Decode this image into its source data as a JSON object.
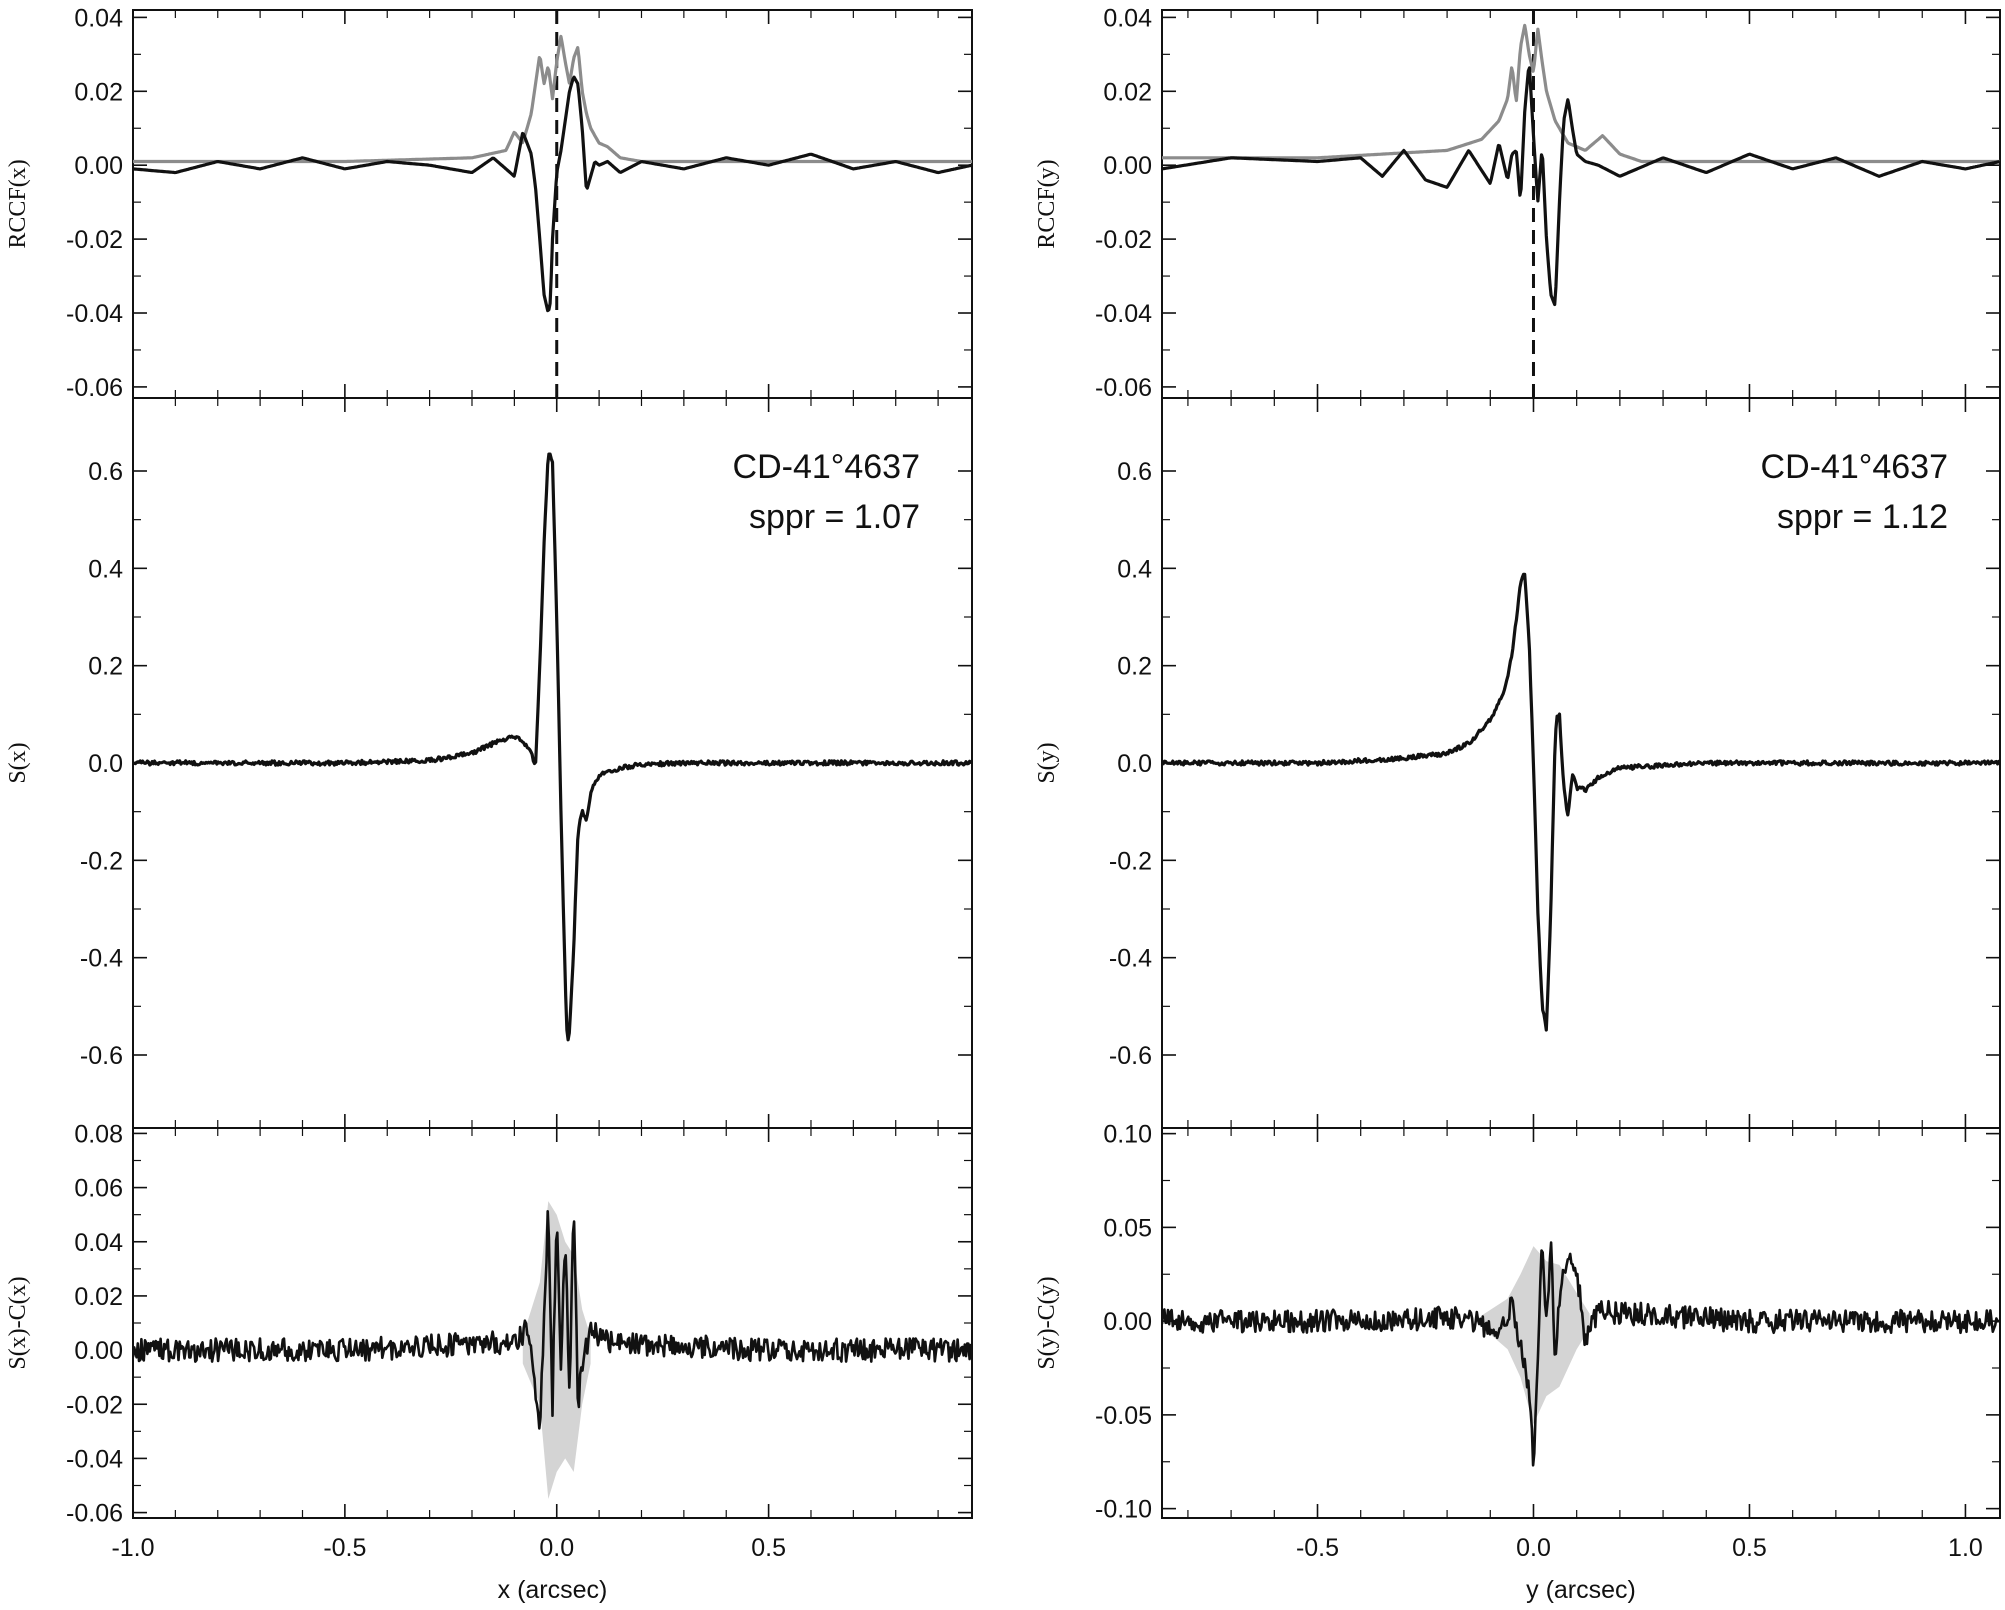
{
  "chart_data": [
    {
      "type": "line",
      "panel": "left-top",
      "ylabel": "RCCF(x)",
      "xlim": [
        -1.0,
        0.98
      ],
      "ylim": [
        -0.063,
        0.042
      ],
      "yticks": [
        "0.04",
        "0.02",
        "0.00",
        "-0.02",
        "-0.04",
        "-0.06"
      ],
      "reference_line_x": 0.0,
      "series": [
        {
          "color": "#8c8c8c",
          "x": [
            -1.0,
            -0.5,
            -0.2,
            -0.12,
            -0.1,
            -0.08,
            -0.06,
            -0.04,
            -0.03,
            -0.02,
            -0.01,
            0.0,
            0.01,
            0.02,
            0.03,
            0.04,
            0.05,
            0.06,
            0.07,
            0.08,
            0.1,
            0.12,
            0.15,
            0.2,
            0.5,
            0.98
          ],
          "y": [
            0.001,
            0.001,
            0.002,
            0.004,
            0.009,
            0.006,
            0.014,
            0.03,
            0.022,
            0.027,
            0.018,
            0.028,
            0.035,
            0.028,
            0.022,
            0.029,
            0.032,
            0.02,
            0.014,
            0.01,
            0.006,
            0.005,
            0.002,
            0.001,
            0.001,
            0.001
          ]
        },
        {
          "color": "#111111",
          "x": [
            -1.0,
            -0.9,
            -0.8,
            -0.7,
            -0.6,
            -0.5,
            -0.4,
            -0.3,
            -0.2,
            -0.15,
            -0.1,
            -0.08,
            -0.06,
            -0.05,
            -0.04,
            -0.03,
            -0.02,
            -0.015,
            -0.01,
            0.0,
            0.01,
            0.02,
            0.03,
            0.04,
            0.05,
            0.06,
            0.07,
            0.08,
            0.09,
            0.1,
            0.12,
            0.15,
            0.2,
            0.3,
            0.4,
            0.5,
            0.6,
            0.7,
            0.8,
            0.9,
            0.98
          ],
          "y": [
            -0.001,
            -0.002,
            0.001,
            -0.001,
            0.002,
            -0.001,
            0.001,
            0.0,
            -0.002,
            0.002,
            -0.003,
            0.009,
            0.003,
            -0.006,
            -0.02,
            -0.035,
            -0.04,
            -0.037,
            -0.02,
            -0.002,
            0.004,
            0.012,
            0.02,
            0.024,
            0.022,
            0.01,
            -0.007,
            -0.003,
            0.001,
            0.0,
            0.001,
            -0.002,
            0.001,
            -0.001,
            0.002,
            0.0,
            0.003,
            -0.001,
            0.001,
            -0.002,
            0.0
          ]
        }
      ]
    },
    {
      "type": "line",
      "panel": "left-middle",
      "ylabel": "S(x)",
      "xlim": [
        -1.0,
        0.98
      ],
      "ylim": [
        -0.75,
        0.75
      ],
      "yticks": [
        "0.6",
        "0.4",
        "0.2",
        "0.0",
        "-0.2",
        "-0.4",
        "-0.6"
      ],
      "annotation": [
        "CD-41°4637",
        "sppr = 1.07"
      ],
      "series": [
        {
          "color": "#111111",
          "x": [
            -1.0,
            -0.5,
            -0.3,
            -0.2,
            -0.15,
            -0.1,
            -0.08,
            -0.06,
            -0.05,
            -0.04,
            -0.03,
            -0.02,
            -0.01,
            0.0,
            0.01,
            0.02,
            0.025,
            0.03,
            0.04,
            0.05,
            0.06,
            0.07,
            0.08,
            0.1,
            0.15,
            0.2,
            0.3,
            0.5,
            0.98
          ],
          "y": [
            0.0,
            0.0,
            0.005,
            0.02,
            0.04,
            0.055,
            0.045,
            0.02,
            -0.005,
            0.2,
            0.45,
            0.64,
            0.62,
            0.3,
            -0.1,
            -0.45,
            -0.58,
            -0.55,
            -0.38,
            -0.14,
            -0.1,
            -0.12,
            -0.06,
            -0.025,
            -0.01,
            -0.003,
            0.0,
            0.0,
            0.0
          ]
        }
      ]
    },
    {
      "type": "line",
      "panel": "left-bottom",
      "ylabel": "S(x)-C(x)",
      "xlabel": "x (arcsec)",
      "xlim": [
        -1.0,
        0.98
      ],
      "ylim": [
        -0.062,
        0.082
      ],
      "yticks": [
        "0.08",
        "0.06",
        "0.04",
        "0.02",
        "0.00",
        "-0.02",
        "-0.04",
        "-0.06"
      ],
      "xticks": [
        "-1.0",
        "-0.5",
        "0.0",
        "0.5"
      ],
      "band": {
        "x": [
          -0.08,
          -0.04,
          -0.02,
          0.0,
          0.02,
          0.04,
          0.06,
          0.08
        ],
        "upper": [
          0.005,
          0.025,
          0.055,
          0.05,
          0.04,
          0.035,
          0.015,
          0.005
        ],
        "lower": [
          -0.005,
          -0.02,
          -0.055,
          -0.045,
          -0.04,
          -0.045,
          -0.02,
          -0.005
        ]
      },
      "series": [
        {
          "color": "#111111",
          "x": [
            -1.0,
            -0.5,
            -0.1,
            -0.07,
            -0.05,
            -0.04,
            -0.03,
            -0.02,
            -0.01,
            0.0,
            0.01,
            0.02,
            0.03,
            0.04,
            0.05,
            0.06,
            0.08,
            0.12,
            0.5,
            0.98
          ],
          "y": [
            0.0,
            0.0,
            0.003,
            0.008,
            -0.015,
            -0.028,
            0.01,
            0.055,
            -0.02,
            0.056,
            -0.01,
            0.045,
            -0.015,
            0.052,
            -0.02,
            -0.005,
            0.008,
            0.003,
            0.0,
            0.0
          ]
        }
      ]
    },
    {
      "type": "line",
      "panel": "right-top",
      "ylabel": "RCCF(y)",
      "xlim": [
        -0.86,
        1.08
      ],
      "ylim": [
        -0.063,
        0.042
      ],
      "yticks": [
        "0.04",
        "0.02",
        "0.00",
        "-0.02",
        "-0.04",
        "-0.06"
      ],
      "reference_line_x": 0.0,
      "series": [
        {
          "color": "#8c8c8c",
          "x": [
            -0.86,
            -0.5,
            -0.2,
            -0.12,
            -0.08,
            -0.06,
            -0.05,
            -0.04,
            -0.03,
            -0.02,
            -0.01,
            0.0,
            0.01,
            0.02,
            0.03,
            0.05,
            0.08,
            0.12,
            0.16,
            0.2,
            0.25,
            0.4,
            1.08
          ],
          "y": [
            0.002,
            0.002,
            0.004,
            0.007,
            0.012,
            0.018,
            0.027,
            0.017,
            0.032,
            0.038,
            0.03,
            0.025,
            0.037,
            0.028,
            0.02,
            0.012,
            0.006,
            0.004,
            0.008,
            0.003,
            0.001,
            0.001,
            0.001
          ]
        },
        {
          "color": "#111111",
          "x": [
            -0.86,
            -0.7,
            -0.5,
            -0.4,
            -0.35,
            -0.3,
            -0.25,
            -0.2,
            -0.15,
            -0.1,
            -0.08,
            -0.06,
            -0.05,
            -0.04,
            -0.03,
            -0.02,
            -0.01,
            0.0,
            0.01,
            0.02,
            0.03,
            0.04,
            0.05,
            0.06,
            0.07,
            0.08,
            0.09,
            0.1,
            0.12,
            0.15,
            0.2,
            0.3,
            0.4,
            0.5,
            0.6,
            0.7,
            0.8,
            0.9,
            1.0,
            1.08
          ],
          "y": [
            -0.001,
            0.002,
            0.001,
            0.002,
            -0.003,
            0.004,
            -0.004,
            -0.006,
            0.004,
            -0.005,
            0.006,
            -0.004,
            0.003,
            0.004,
            -0.01,
            0.015,
            0.028,
            0.008,
            -0.01,
            0.005,
            -0.02,
            -0.035,
            -0.038,
            -0.01,
            0.012,
            0.018,
            0.01,
            0.003,
            0.001,
            0.0,
            -0.003,
            0.002,
            -0.002,
            0.003,
            -0.001,
            0.002,
            -0.003,
            0.001,
            -0.001,
            0.001
          ]
        }
      ]
    },
    {
      "type": "line",
      "panel": "right-middle",
      "ylabel": "S(y)",
      "xlim": [
        -0.86,
        1.08
      ],
      "ylim": [
        -0.75,
        0.75
      ],
      "yticks": [
        "0.6",
        "0.4",
        "0.2",
        "0.0",
        "-0.2",
        "-0.4",
        "-0.6"
      ],
      "annotation": [
        "CD-41°4637",
        "sppr = 1.12"
      ],
      "series": [
        {
          "color": "#111111",
          "x": [
            -0.86,
            -0.5,
            -0.3,
            -0.2,
            -0.15,
            -0.1,
            -0.07,
            -0.05,
            -0.03,
            -0.02,
            -0.01,
            0.0,
            0.01,
            0.02,
            0.03,
            0.04,
            0.05,
            0.055,
            0.06,
            0.07,
            0.08,
            0.09,
            0.1,
            0.12,
            0.15,
            0.2,
            0.4,
            1.08
          ],
          "y": [
            0.0,
            0.0,
            0.01,
            0.02,
            0.04,
            0.09,
            0.14,
            0.22,
            0.37,
            0.39,
            0.25,
            0.0,
            -0.3,
            -0.5,
            -0.55,
            -0.3,
            0.05,
            0.1,
            0.1,
            -0.05,
            -0.11,
            -0.02,
            -0.05,
            -0.055,
            -0.03,
            -0.01,
            0.0,
            0.0
          ]
        }
      ]
    },
    {
      "type": "line",
      "panel": "right-bottom",
      "ylabel": "S(y)-C(y)",
      "xlabel": "y (arcsec)",
      "xlim": [
        -0.86,
        1.08
      ],
      "ylim": [
        -0.105,
        0.103
      ],
      "yticks": [
        "0.10",
        "0.05",
        "0.00",
        "-0.05",
        "-0.10"
      ],
      "xticks": [
        "-0.5",
        "0.0",
        "0.5",
        "1.0"
      ],
      "band": {
        "x": [
          -0.12,
          -0.06,
          -0.03,
          0.0,
          0.03,
          0.06,
          0.1,
          0.13
        ],
        "upper": [
          0.003,
          0.012,
          0.025,
          0.04,
          0.032,
          0.03,
          0.015,
          0.004
        ],
        "lower": [
          -0.003,
          -0.015,
          -0.03,
          -0.055,
          -0.04,
          -0.035,
          -0.015,
          -0.004
        ]
      },
      "series": [
        {
          "color": "#111111",
          "x": [
            -0.86,
            -0.5,
            -0.15,
            -0.08,
            -0.05,
            -0.03,
            -0.02,
            -0.01,
            0.0,
            0.01,
            0.02,
            0.03,
            0.04,
            0.05,
            0.06,
            0.07,
            0.08,
            0.1,
            0.12,
            0.15,
            0.5,
            1.08
          ],
          "y": [
            0.0,
            0.0,
            0.002,
            -0.006,
            0.008,
            -0.015,
            -0.025,
            -0.04,
            -0.075,
            -0.02,
            0.045,
            0.0,
            0.04,
            -0.02,
            0.01,
            0.025,
            0.035,
            0.028,
            -0.01,
            0.005,
            0.0,
            0.0
          ]
        }
      ]
    }
  ]
}
